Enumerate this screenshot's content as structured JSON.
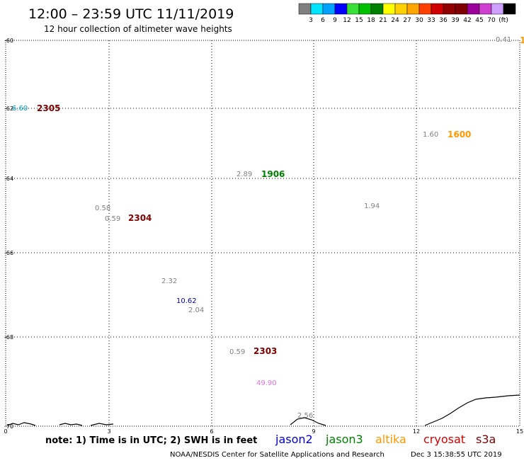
{
  "header": {
    "title": "12:00 – 23:59 UTC 11/11/2019",
    "subtitle": "12 hour collection of altimeter wave heights"
  },
  "color_scale": {
    "colors": [
      "#808080",
      "#00e5ff",
      "#00a2ff",
      "#0000ff",
      "#38e038",
      "#00c000",
      "#008000",
      "#ffff00",
      "#ffd000",
      "#ffa500",
      "#ff4000",
      "#d00000",
      "#900000",
      "#800000",
      "#9b009b",
      "#d040d0",
      "#d0a0ff",
      "#000000"
    ],
    "labels": [
      "3",
      "6",
      "9",
      "12",
      "15",
      "18",
      "21",
      "24",
      "27",
      "30",
      "33",
      "36",
      "39",
      "42",
      "45",
      "70",
      "(ft)"
    ]
  },
  "map": {
    "lat_ticks": [
      "-60",
      "-62",
      "-64",
      "-66",
      "-68",
      "-70"
    ],
    "lon_ticks": [
      "0",
      "3",
      "6",
      "9",
      "12",
      "15"
    ]
  },
  "observations": [
    {
      "value": "0.41",
      "color": "#808080"
    },
    {
      "value": "1",
      "color": "#ff9900",
      "time": true
    },
    {
      "value": "6.60",
      "color": "#00a0d0"
    },
    {
      "value": "2305",
      "color": "#800000",
      "time": true
    },
    {
      "value": "1.60",
      "color": "#808080"
    },
    {
      "value": "1600",
      "color": "#ff9900",
      "time": true
    },
    {
      "value": "2.89",
      "color": "#808080"
    },
    {
      "value": "1906",
      "color": "#008000",
      "time": true
    },
    {
      "value": "1.94",
      "color": "#808080"
    },
    {
      "value": "0.58",
      "color": "#808080"
    },
    {
      "value": "0.59",
      "color": "#808080"
    },
    {
      "value": "2304",
      "color": "#800000",
      "time": true
    },
    {
      "value": "2.32",
      "color": "#808080"
    },
    {
      "value": "10.62",
      "color": "#0000c0"
    },
    {
      "value": "2.04",
      "color": "#808080"
    },
    {
      "value": "0.59",
      "color": "#808080"
    },
    {
      "value": "2303",
      "color": "#800000",
      "time": true
    },
    {
      "value": "49.90",
      "color": "#e070e0"
    },
    {
      "value": "2.56",
      "color": "#808080"
    }
  ],
  "legend": {
    "note": "note: 1) Time is in UTC; 2) SWH is in feet",
    "satellites": [
      {
        "name": "jason2",
        "color": "#0000d0"
      },
      {
        "name": "jason3",
        "color": "#008000"
      },
      {
        "name": "altika",
        "color": "#ff9900"
      },
      {
        "name": "cryosat",
        "color": "#d00000"
      },
      {
        "name": "s3a",
        "color": "#800000"
      }
    ]
  },
  "footer": {
    "credit": "NOAA/NESDIS Center for Satellite Applications and Research",
    "timestamp": "Dec  3 15:38:55 UTC 2019"
  }
}
